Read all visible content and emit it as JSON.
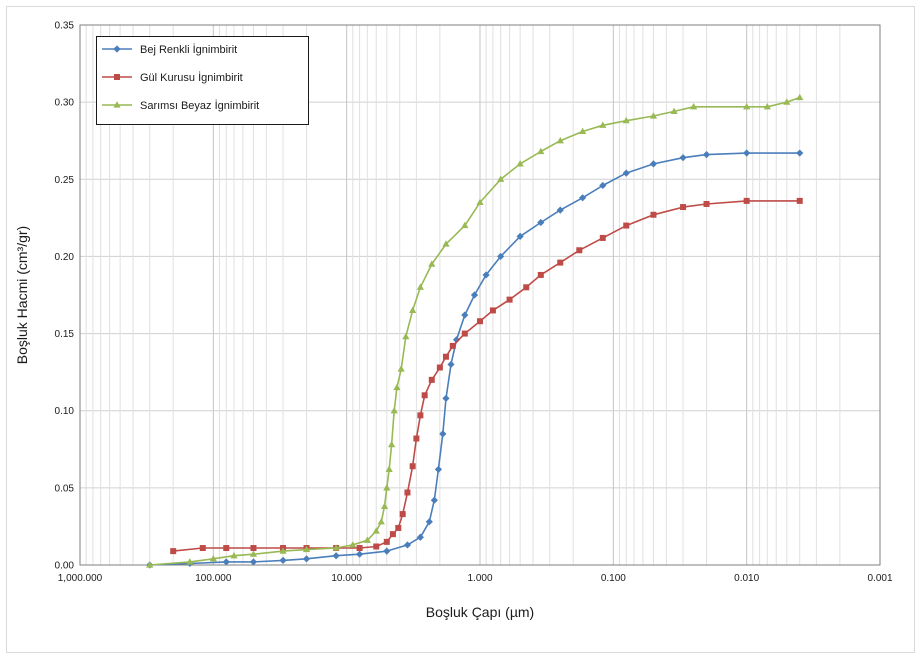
{
  "chart_data": {
    "type": "line",
    "xlabel": "Boşluk Çapı (µm)",
    "ylabel": "Boşluk Hacmi (cm³/gr)",
    "x_scale": "log",
    "x_reversed": true,
    "xlim": [
      1000,
      0.001
    ],
    "ylim": [
      0,
      0.35
    ],
    "x_ticks": [
      1000,
      100,
      10,
      1,
      0.1,
      0.01,
      0.001
    ],
    "x_tick_labels": [
      "1,000.000",
      "100.000",
      "10.000",
      "1.000",
      "0.100",
      "0.010",
      "0.001"
    ],
    "y_ticks": [
      0,
      0.05,
      0.1,
      0.15,
      0.2,
      0.25,
      0.3,
      0.35
    ],
    "y_tick_labels": [
      "0.00",
      "0.05",
      "0.10",
      "0.15",
      "0.20",
      "0.25",
      "0.30",
      "0.35"
    ],
    "grid": true,
    "legend_position": "top-left",
    "series": [
      {
        "name": "Bej Renkli İgnimbirit",
        "color": "#4a7ebb",
        "marker": "diamond",
        "points": [
          [
            300,
            0
          ],
          [
            150,
            0.001
          ],
          [
            80,
            0.002
          ],
          [
            50,
            0.002
          ],
          [
            30,
            0.003
          ],
          [
            20,
            0.004
          ],
          [
            12,
            0.006
          ],
          [
            8,
            0.007
          ],
          [
            5,
            0.009
          ],
          [
            3.5,
            0.013
          ],
          [
            2.8,
            0.018
          ],
          [
            2.4,
            0.028
          ],
          [
            2.2,
            0.042
          ],
          [
            2.05,
            0.062
          ],
          [
            1.9,
            0.085
          ],
          [
            1.8,
            0.108
          ],
          [
            1.65,
            0.13
          ],
          [
            1.5,
            0.146
          ],
          [
            1.3,
            0.162
          ],
          [
            1.1,
            0.175
          ],
          [
            0.9,
            0.188
          ],
          [
            0.7,
            0.2
          ],
          [
            0.5,
            0.213
          ],
          [
            0.35,
            0.222
          ],
          [
            0.25,
            0.23
          ],
          [
            0.17,
            0.238
          ],
          [
            0.12,
            0.246
          ],
          [
            0.08,
            0.254
          ],
          [
            0.05,
            0.26
          ],
          [
            0.03,
            0.264
          ],
          [
            0.02,
            0.266
          ],
          [
            0.01,
            0.267
          ],
          [
            0.004,
            0.267
          ]
        ]
      },
      {
        "name": "Gül Kurusu İgnimbirit",
        "color": "#be4b48",
        "marker": "square",
        "points": [
          [
            200,
            0.009
          ],
          [
            120,
            0.011
          ],
          [
            80,
            0.011
          ],
          [
            50,
            0.011
          ],
          [
            30,
            0.011
          ],
          [
            20,
            0.011
          ],
          [
            12,
            0.011
          ],
          [
            8,
            0.011
          ],
          [
            6,
            0.012
          ],
          [
            5,
            0.015
          ],
          [
            4.5,
            0.02
          ],
          [
            4.1,
            0.024
          ],
          [
            3.8,
            0.033
          ],
          [
            3.5,
            0.047
          ],
          [
            3.2,
            0.064
          ],
          [
            3,
            0.082
          ],
          [
            2.8,
            0.097
          ],
          [
            2.6,
            0.11
          ],
          [
            2.3,
            0.12
          ],
          [
            2,
            0.128
          ],
          [
            1.8,
            0.135
          ],
          [
            1.6,
            0.142
          ],
          [
            1.3,
            0.15
          ],
          [
            1,
            0.158
          ],
          [
            0.8,
            0.165
          ],
          [
            0.6,
            0.172
          ],
          [
            0.45,
            0.18
          ],
          [
            0.35,
            0.188
          ],
          [
            0.25,
            0.196
          ],
          [
            0.18,
            0.204
          ],
          [
            0.12,
            0.212
          ],
          [
            0.08,
            0.22
          ],
          [
            0.05,
            0.227
          ],
          [
            0.03,
            0.232
          ],
          [
            0.02,
            0.234
          ],
          [
            0.01,
            0.236
          ],
          [
            0.004,
            0.236
          ]
        ]
      },
      {
        "name": "Sarımsı Beyaz İgnimbirit",
        "color": "#98b954",
        "marker": "triangle",
        "points": [
          [
            300,
            0
          ],
          [
            150,
            0.002
          ],
          [
            100,
            0.004
          ],
          [
            70,
            0.006
          ],
          [
            50,
            0.007
          ],
          [
            30,
            0.009
          ],
          [
            20,
            0.01
          ],
          [
            12,
            0.011
          ],
          [
            9,
            0.013
          ],
          [
            7,
            0.016
          ],
          [
            6,
            0.022
          ],
          [
            5.5,
            0.028
          ],
          [
            5.2,
            0.038
          ],
          [
            5,
            0.05
          ],
          [
            4.8,
            0.062
          ],
          [
            4.6,
            0.078
          ],
          [
            4.4,
            0.1
          ],
          [
            4.2,
            0.115
          ],
          [
            3.9,
            0.127
          ],
          [
            3.6,
            0.148
          ],
          [
            3.2,
            0.165
          ],
          [
            2.8,
            0.18
          ],
          [
            2.3,
            0.195
          ],
          [
            1.8,
            0.208
          ],
          [
            1.3,
            0.22
          ],
          [
            1,
            0.235
          ],
          [
            0.7,
            0.25
          ],
          [
            0.5,
            0.26
          ],
          [
            0.35,
            0.268
          ],
          [
            0.25,
            0.275
          ],
          [
            0.17,
            0.281
          ],
          [
            0.12,
            0.285
          ],
          [
            0.08,
            0.288
          ],
          [
            0.05,
            0.291
          ],
          [
            0.035,
            0.294
          ],
          [
            0.025,
            0.297
          ],
          [
            0.01,
            0.297
          ],
          [
            0.007,
            0.297
          ],
          [
            0.005,
            0.3
          ],
          [
            0.004,
            0.303
          ]
        ]
      }
    ]
  }
}
